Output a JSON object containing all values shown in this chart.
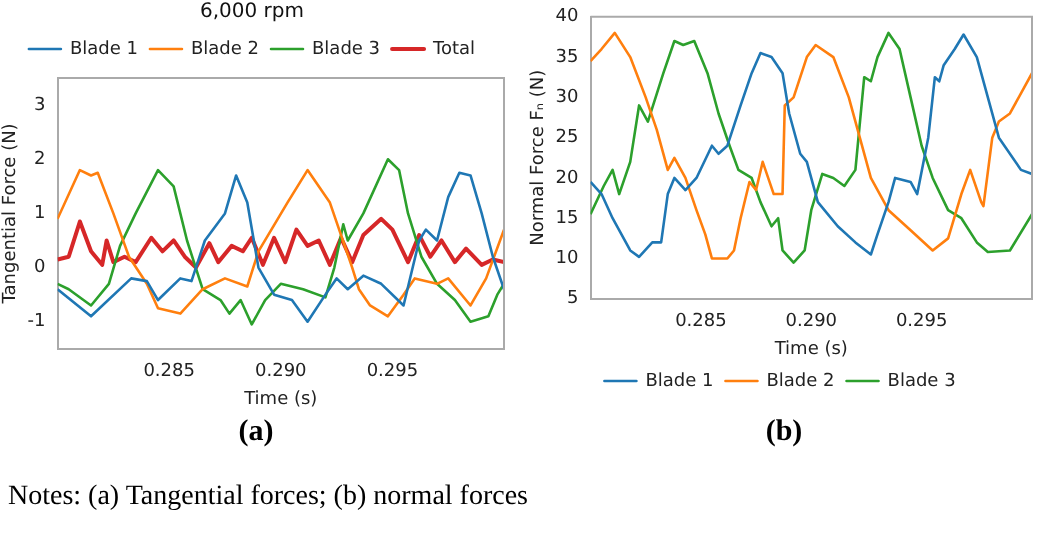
{
  "chart_data": [
    {
      "type": "line",
      "title": "6,000 rpm",
      "xlabel": "Time (s)",
      "ylabel": "Tangential Force (N)",
      "annotations": [
        "(a)"
      ],
      "xlim": [
        0.28,
        0.3
      ],
      "xticks": [
        {
          "value": 0.285,
          "label": "0.285"
        },
        {
          "value": 0.29,
          "label": "0.290"
        },
        {
          "value": 0.295,
          "label": "0.295"
        }
      ],
      "ylim": [
        -1.5,
        3.5
      ],
      "yticks": [
        -1,
        0,
        1,
        2,
        3
      ],
      "grid": false,
      "legend": "top",
      "line_style": "solid",
      "marker": "none",
      "series": [
        {
          "name": "Blade 1",
          "color": "#1f77b4",
          "x": [
            0.28,
            0.2815,
            0.2833,
            0.284,
            0.2845,
            0.2855,
            0.286,
            0.2866,
            0.2875,
            0.288,
            0.2885,
            0.289,
            0.2897,
            0.2905,
            0.2912,
            0.292,
            0.2925,
            0.293,
            0.2937,
            0.2945,
            0.2955,
            0.2962,
            0.2965,
            0.297,
            0.2975,
            0.298,
            0.2985,
            0.299,
            0.2995,
            0.3
          ],
          "values": [
            -0.4,
            -0.9,
            -0.2,
            -0.25,
            -0.6,
            -0.2,
            -0.25,
            0.5,
            1.0,
            1.7,
            1.2,
            0,
            -0.5,
            -0.6,
            -1.0,
            -0.5,
            -0.2,
            -0.4,
            -0.15,
            -0.3,
            -0.7,
            0.5,
            0.7,
            0.5,
            1.3,
            1.75,
            1.7,
            1.0,
            0.2,
            -0.4
          ]
        },
        {
          "name": "Blade 2",
          "color": "#ff7f0e",
          "x": [
            0.28,
            0.281,
            0.2815,
            0.2818,
            0.2825,
            0.2832,
            0.284,
            0.2845,
            0.2855,
            0.2865,
            0.2875,
            0.2885,
            0.289,
            0.2903,
            0.2912,
            0.2922,
            0.2932,
            0.2935,
            0.294,
            0.2948,
            0.2955,
            0.296,
            0.297,
            0.2975,
            0.2985,
            0.2992,
            0.3
          ],
          "values": [
            0.9,
            1.8,
            1.7,
            1.75,
            1.0,
            0.2,
            -0.3,
            -0.75,
            -0.85,
            -0.4,
            -0.2,
            -0.35,
            0.3,
            1.2,
            1.8,
            1.2,
            0,
            -0.4,
            -0.7,
            -0.9,
            -0.5,
            -0.2,
            -0.3,
            -0.2,
            -0.7,
            -0.2,
            0.7
          ]
        },
        {
          "name": "Blade 3",
          "color": "#2ca02c",
          "x": [
            0.28,
            0.2805,
            0.2815,
            0.2823,
            0.2828,
            0.2835,
            0.2845,
            0.2852,
            0.2858,
            0.2865,
            0.2873,
            0.2877,
            0.2882,
            0.2887,
            0.2893,
            0.29,
            0.291,
            0.292,
            0.2924,
            0.2928,
            0.293,
            0.2937,
            0.2948,
            0.2953,
            0.2957,
            0.2963,
            0.297,
            0.2978,
            0.2985,
            0.2993,
            0.2997,
            0.3
          ],
          "values": [
            -0.3,
            -0.4,
            -0.7,
            -0.3,
            0.4,
            1.0,
            1.8,
            1.5,
            0.5,
            -0.4,
            -0.6,
            -0.85,
            -0.6,
            -1.05,
            -0.6,
            -0.3,
            -0.4,
            -0.55,
            0.0,
            0.8,
            0.5,
            1.0,
            2.0,
            1.8,
            1.0,
            0.2,
            -0.3,
            -0.6,
            -1.0,
            -0.9,
            -0.5,
            -0.3
          ]
        },
        {
          "name": "Total",
          "color": "#d62728",
          "x": [
            0.28,
            0.2805,
            0.281,
            0.2815,
            0.282,
            0.2822,
            0.2825,
            0.283,
            0.2835,
            0.2842,
            0.2847,
            0.2852,
            0.2857,
            0.2862,
            0.2868,
            0.2872,
            0.2878,
            0.2883,
            0.2887,
            0.2892,
            0.2897,
            0.2902,
            0.2907,
            0.2912,
            0.2917,
            0.2922,
            0.2927,
            0.2932,
            0.2937,
            0.2945,
            0.295,
            0.2957,
            0.2962,
            0.2967,
            0.2972,
            0.2978,
            0.2983,
            0.299,
            0.2995,
            0.3
          ],
          "values": [
            0.15,
            0.2,
            0.85,
            0.3,
            0.05,
            0.5,
            0.1,
            0.2,
            0.1,
            0.55,
            0.3,
            0.5,
            0.2,
            0.0,
            0.45,
            0.1,
            0.4,
            0.3,
            0.55,
            0.05,
            0.55,
            0.1,
            0.7,
            0.4,
            0.5,
            0.05,
            0.55,
            0.1,
            0.6,
            0.9,
            0.7,
            0.1,
            0.6,
            0.2,
            0.5,
            0.1,
            0.35,
            0.05,
            0.15,
            0.1
          ]
        }
      ]
    },
    {
      "type": "line",
      "xlabel": "Time (s)",
      "ylabel": "Normal Force Fₙ (N)",
      "annotations": [
        "(b)",
        "Notes: (a) Tangential forces; (b) normal forces"
      ],
      "xlim": [
        0.28,
        0.3
      ],
      "xticks": [
        {
          "value": 0.285,
          "label": "0.285"
        },
        {
          "value": 0.29,
          "label": "0.290"
        },
        {
          "value": 0.295,
          "label": "0.295"
        }
      ],
      "ylim": [
        5,
        40
      ],
      "yticks": [
        5,
        10,
        15,
        20,
        25,
        30,
        35,
        40
      ],
      "grid": false,
      "legend": "bottom",
      "line_style": "solid",
      "marker": "none",
      "series": [
        {
          "name": "Blade 1",
          "color": "#1f77b4",
          "x": [
            0.28,
            0.2805,
            0.281,
            0.2818,
            0.2822,
            0.2828,
            0.2832,
            0.2835,
            0.2838,
            0.2843,
            0.2848,
            0.2855,
            0.2858,
            0.2862,
            0.2868,
            0.2873,
            0.2877,
            0.2882,
            0.2887,
            0.289,
            0.2895,
            0.2898,
            0.2903,
            0.2912,
            0.292,
            0.2927,
            0.293,
            0.2935,
            0.2938,
            0.2945,
            0.2948,
            0.2953,
            0.2956,
            0.2958,
            0.296,
            0.2965,
            0.2969,
            0.2975,
            0.298,
            0.2985,
            0.2995,
            0.3
          ],
          "values": [
            19.5,
            18,
            15,
            11,
            10.2,
            12,
            12,
            18,
            20,
            18.5,
            20,
            24,
            23,
            24,
            29,
            33,
            35.5,
            35,
            33,
            28,
            23,
            22,
            17,
            14,
            12,
            10.5,
            13,
            17,
            20,
            19.5,
            18,
            25,
            32.5,
            32,
            34,
            36,
            37.8,
            35,
            30,
            25,
            21,
            20.5
          ]
        },
        {
          "name": "Blade 2",
          "color": "#ff7f0e",
          "x": [
            0.28,
            0.2805,
            0.2811,
            0.2818,
            0.2825,
            0.283,
            0.2835,
            0.2838,
            0.2843,
            0.2848,
            0.2852,
            0.2855,
            0.2862,
            0.2865,
            0.2868,
            0.2872,
            0.2875,
            0.2878,
            0.2883,
            0.2887,
            0.2888,
            0.2892,
            0.2898,
            0.2902,
            0.291,
            0.2917,
            0.2922,
            0.2927,
            0.2935,
            0.2945,
            0.2955,
            0.2962,
            0.2968,
            0.2972,
            0.2977,
            0.2978,
            0.2982,
            0.2985,
            0.299,
            0.3
          ],
          "values": [
            34.5,
            36,
            38,
            35,
            30,
            26,
            21,
            22.5,
            20,
            16,
            13,
            10,
            10,
            11,
            15,
            19.5,
            18.5,
            22,
            18,
            18,
            29,
            30,
            35,
            36.5,
            35,
            30,
            25,
            20,
            16,
            13.5,
            11,
            12.5,
            18,
            21,
            17,
            16.5,
            25,
            27,
            28,
            33
          ]
        },
        {
          "name": "Blade 3",
          "color": "#2ca02c",
          "x": [
            0.28,
            0.2806,
            0.281,
            0.2813,
            0.2818,
            0.2822,
            0.2826,
            0.2833,
            0.2838,
            0.2842,
            0.2847,
            0.2853,
            0.2858,
            0.2863,
            0.2867,
            0.2873,
            0.2877,
            0.2882,
            0.2885,
            0.2887,
            0.2892,
            0.2897,
            0.29,
            0.2905,
            0.291,
            0.2915,
            0.292,
            0.2924,
            0.2927,
            0.293,
            0.2935,
            0.294,
            0.2945,
            0.295,
            0.2955,
            0.2962,
            0.2968,
            0.2975,
            0.298,
            0.299,
            0.3
          ],
          "values": [
            15.5,
            19,
            21,
            18,
            22,
            29,
            27,
            33,
            37,
            36.5,
            37,
            33,
            28,
            24,
            21,
            20,
            17,
            14,
            15,
            11,
            9.5,
            11,
            16,
            20.5,
            20,
            19,
            21,
            32.5,
            32,
            35,
            38,
            36,
            30,
            24,
            20,
            16,
            15,
            12,
            10.8,
            11,
            15.5
          ]
        }
      ]
    }
  ]
}
